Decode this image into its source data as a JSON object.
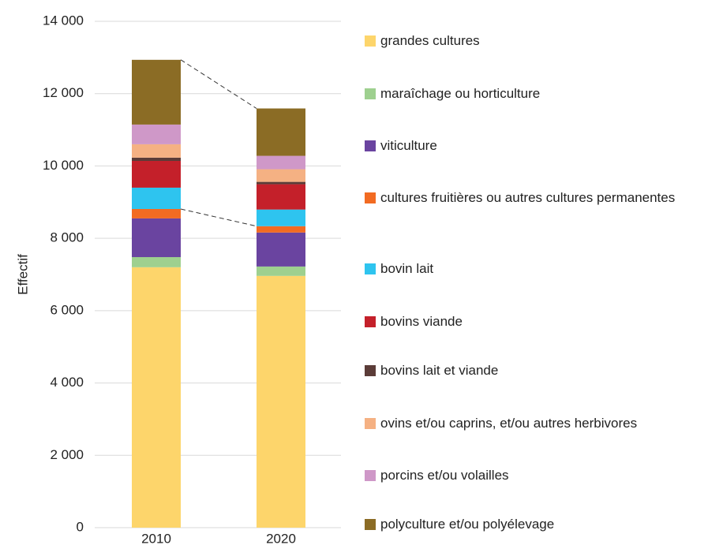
{
  "chart_data": {
    "type": "bar",
    "stacked": true,
    "y_label": "Effectif",
    "categories": [
      "2010",
      "2020"
    ],
    "ylim": [
      0,
      14000
    ],
    "yticks": [
      0,
      {
        "value": 2000,
        "label": "2 000"
      },
      {
        "value": 4000,
        "label": "4 000"
      },
      {
        "value": 6000,
        "label": "6 000"
      },
      {
        "value": 8000,
        "label": "8 000"
      },
      {
        "value": 10000,
        "label": "10 000"
      },
      {
        "value": 12000,
        "label": "12 000"
      },
      {
        "value": 14000,
        "label": "14 000"
      }
    ],
    "grid": true,
    "series": [
      {
        "name": "grandes cultures",
        "color": "#fdd56b",
        "values": [
          7200,
          6960
        ]
      },
      {
        "name": "maraîchage ou horticulture",
        "color": "#9ed08f",
        "values": [
          280,
          260
        ]
      },
      {
        "name": "viticulture",
        "color": "#6a44a0",
        "values": [
          1070,
          940
        ]
      },
      {
        "name": "cultures fruitières ou autres cultures permanentes",
        "color": "#f26b22",
        "values": [
          260,
          175
        ]
      },
      {
        "name": "bovin lait",
        "color": "#2ec4ef",
        "values": [
          590,
          460
        ]
      },
      {
        "name": "bovins viande",
        "color": "#c4202a",
        "values": [
          740,
          700
        ]
      },
      {
        "name": "bovins lait et viande",
        "color": "#5b3c38",
        "values": [
          90,
          65
        ]
      },
      {
        "name": "ovins et/ou  caprins, et/ou autres herbivores",
        "color": "#f5b183",
        "values": [
          370,
          350
        ]
      },
      {
        "name": "porcins et/ou volailles",
        "color": "#cf98c8",
        "values": [
          545,
          370
        ]
      },
      {
        "name": "polyculture et/ou polyélevage",
        "color": "#8b6c25",
        "values": [
          1790,
          1310
        ]
      }
    ]
  }
}
